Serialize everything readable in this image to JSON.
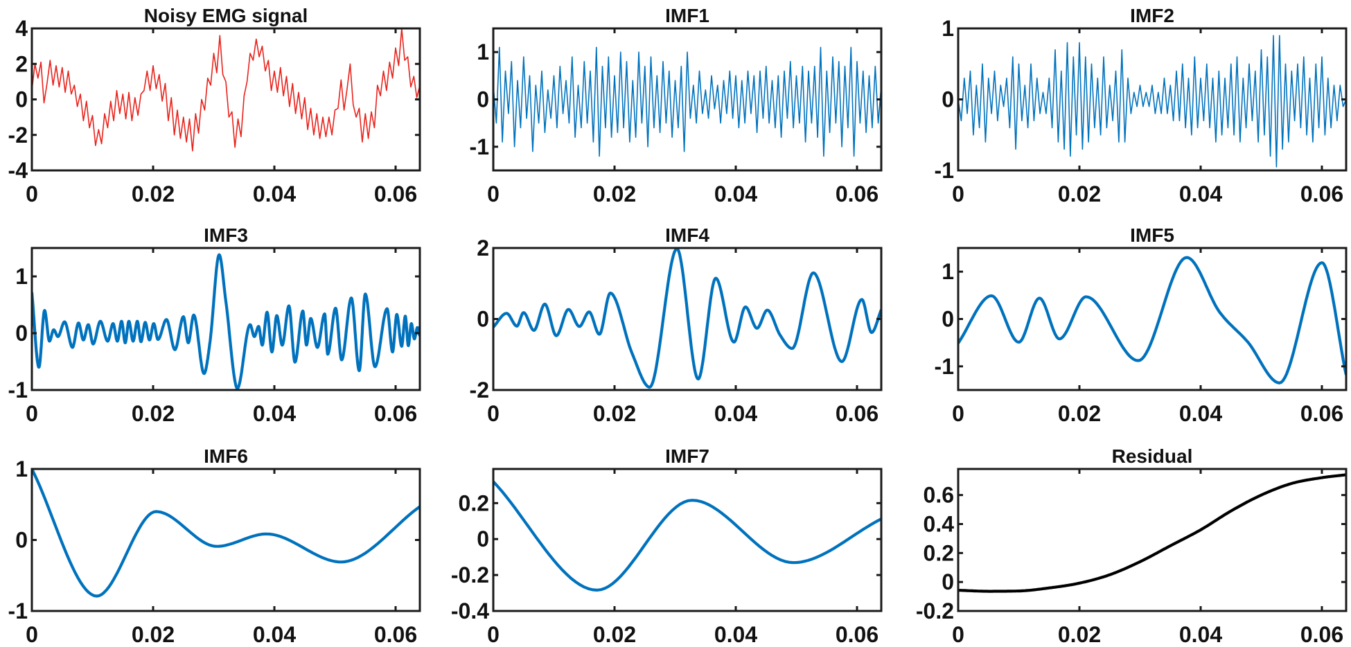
{
  "chart_data": [
    {
      "type": "line",
      "title": "Noisy EMG signal",
      "color": "#e8221b",
      "xlim": [
        0,
        0.064
      ],
      "ylim": [
        -4,
        4
      ],
      "xticks": [
        "0",
        "0.02",
        "0.04",
        "0.06"
      ],
      "yticks": [
        "-4",
        "-2",
        "0",
        "2",
        "4"
      ],
      "y": [
        0.5,
        2.0,
        1.2,
        2.1,
        -0.2,
        0.9,
        2.2,
        0.8,
        1.9,
        0.7,
        1.8,
        0.4,
        1.6,
        0.3,
        0.8,
        -0.4,
        0.3,
        -1.2,
        -0.1,
        -1.6,
        -0.9,
        -2.6,
        -1.7,
        -2.5,
        -0.8,
        -1.6,
        -0.1,
        -1.2,
        0.5,
        -0.8,
        0.3,
        -1.1,
        0.4,
        -1.2,
        0.1,
        -0.9,
        0.3,
        0.5,
        1.6,
        0.5,
        1.9,
        0.6,
        1.4,
        -0.1,
        0.9,
        -1.2,
        0.1,
        -2.0,
        -0.6,
        -2.2,
        -1.0,
        -2.4,
        -1.1,
        -2.9,
        -0.8,
        -1.9,
        0.0,
        -0.6,
        1.2,
        0.8,
        2.6,
        1.5,
        3.6,
        1.4,
        1.0,
        -1.0,
        -0.7,
        -2.7,
        -1.1,
        -2.1,
        0.2,
        1.0,
        2.6,
        2.2,
        3.4,
        2.4,
        3.0,
        1.6,
        2.2,
        0.5,
        1.6,
        0.4,
        1.8,
        0.2,
        1.3,
        -0.4,
        0.9,
        -0.8,
        0.4,
        -1.1,
        0.1,
        -1.7,
        -0.5,
        -2.0,
        -0.8,
        -2.2,
        -1.0,
        -2.1,
        -1.0,
        -2.0,
        -0.6,
        -0.5,
        1.1,
        -0.6,
        0.6,
        2.0,
        -0.3,
        -1.0,
        -0.5,
        -2.4,
        -0.8,
        -2.2,
        -0.7,
        -1.6,
        0.8,
        0.2,
        1.6,
        0.5,
        2.1,
        1.2,
        2.9,
        1.9,
        4.0,
        2.2,
        2.4,
        0.7,
        1.3,
        0.1,
        0.8
      ]
    },
    {
      "type": "line",
      "title": "IMF1",
      "color": "#0072bd",
      "xlim": [
        0,
        0.064
      ],
      "ylim": [
        -1.5,
        1.5
      ],
      "xticks": [
        "0",
        "0.02",
        "0.04",
        "0.06"
      ],
      "yticks": [
        "-1",
        "0",
        "1"
      ],
      "y": [
        0.3,
        -0.5,
        1.1,
        -0.9,
        0.6,
        -0.3,
        0.8,
        -1.0,
        0.4,
        -0.6,
        0.9,
        -0.4,
        0.5,
        -1.1,
        0.3,
        -0.5,
        0.6,
        -0.7,
        0.2,
        -0.4,
        0.5,
        -0.6,
        0.7,
        -0.3,
        0.4,
        -0.5,
        0.9,
        -0.8,
        0.3,
        -0.6,
        0.8,
        -0.5,
        0.6,
        -0.9,
        1.1,
        -1.2,
        0.7,
        -0.6,
        0.9,
        -0.8,
        0.5,
        -0.7,
        1.0,
        -0.6,
        0.8,
        -0.9,
        0.4,
        -0.8,
        1.0,
        -0.5,
        0.7,
        -1.0,
        0.9,
        -0.6,
        0.5,
        -0.7,
        0.8,
        -0.5,
        0.6,
        -0.8,
        0.4,
        -0.6,
        0.7,
        -1.1,
        1.0,
        -0.4,
        0.3,
        -0.5,
        0.6,
        -0.3,
        0.2,
        -0.4,
        0.5,
        -0.2,
        0.3,
        -0.5,
        0.4,
        -0.3,
        0.6,
        -0.4,
        0.5,
        -0.6,
        0.4,
        -0.5,
        0.6,
        -0.3,
        0.5,
        -0.7,
        0.6,
        -0.4,
        0.7,
        -0.5,
        0.4,
        -0.6,
        0.5,
        -0.8,
        0.6,
        -0.4,
        0.8,
        -0.6,
        0.5,
        -0.5,
        0.7,
        -0.9,
        0.6,
        -0.5,
        0.7,
        -0.8,
        1.1,
        -1.2,
        0.6,
        -0.7,
        0.9,
        -0.5,
        0.8,
        -1.0,
        0.7,
        -0.6,
        1.1,
        -1.2,
        0.8,
        -0.5,
        0.6,
        -0.7,
        0.5,
        -0.6,
        0.7,
        -0.5,
        0.3
      ]
    },
    {
      "type": "line",
      "title": "IMF2",
      "color": "#0072bd",
      "xlim": [
        0,
        0.064
      ],
      "ylim": [
        -1,
        1
      ],
      "xticks": [
        "0",
        "0.02",
        "0.04",
        "0.06"
      ],
      "yticks": [
        "-1",
        "0",
        "1"
      ],
      "y": [
        0.0,
        -0.3,
        0.3,
        -0.2,
        0.4,
        -0.5,
        0.2,
        -0.4,
        0.5,
        -0.6,
        0.3,
        -0.2,
        0.4,
        -0.3,
        0.2,
        -0.1,
        0.3,
        -0.4,
        0.6,
        -0.7,
        0.5,
        -0.3,
        0.2,
        -0.4,
        0.5,
        -0.3,
        0.3,
        -0.2,
        0.1,
        -0.2,
        0.3,
        -0.4,
        0.7,
        -0.6,
        0.4,
        -0.7,
        0.8,
        -0.8,
        0.6,
        -0.5,
        0.8,
        -0.7,
        0.6,
        -0.6,
        0.5,
        -0.4,
        0.3,
        -0.5,
        0.6,
        -0.4,
        0.2,
        -0.3,
        0.4,
        -0.6,
        0.7,
        -0.6,
        0.3,
        -0.2,
        0.1,
        -0.1,
        0.2,
        -0.1,
        0.1,
        -0.1,
        0.2,
        -0.2,
        0.1,
        -0.2,
        0.3,
        -0.2,
        0.2,
        -0.3,
        0.4,
        -0.3,
        0.5,
        -0.4,
        0.3,
        -0.5,
        0.6,
        -0.4,
        0.3,
        -0.3,
        0.5,
        -0.4,
        0.3,
        -0.6,
        0.4,
        -0.5,
        0.3,
        -0.4,
        0.5,
        -0.5,
        0.6,
        -0.6,
        0.3,
        -0.4,
        0.5,
        -0.3,
        0.4,
        -0.6,
        0.7,
        -0.5,
        0.6,
        -0.8,
        0.9,
        -0.95,
        0.9,
        -0.7,
        0.5,
        -0.6,
        0.4,
        -0.3,
        0.5,
        -0.4,
        0.6,
        -0.5,
        0.3,
        -0.6,
        0.5,
        -0.4,
        0.6,
        -0.5,
        0.3,
        -0.4,
        0.2,
        -0.3,
        0.2,
        -0.1,
        0.0
      ]
    },
    {
      "type": "line",
      "title": "IMF3",
      "color": "#0072bd",
      "xlim": [
        0,
        0.064
      ],
      "ylim": [
        -1,
        1.5
      ],
      "xticks": [
        "0",
        "0.02",
        "0.04",
        "0.06"
      ],
      "yticks": [
        "-1",
        "0",
        "1"
      ],
      "x": [
        0,
        0.00116,
        0.0021,
        0.0029,
        0.0036,
        0.0043,
        0.0054,
        0.0067,
        0.0077,
        0.0085,
        0.0093,
        0.0101,
        0.0113,
        0.0125,
        0.0134,
        0.0141,
        0.0148,
        0.0154,
        0.016,
        0.0167,
        0.0174,
        0.018,
        0.0187,
        0.0194,
        0.0201,
        0.0208,
        0.0222,
        0.0236,
        0.025,
        0.0258,
        0.0267,
        0.0284,
        0.0294,
        0.0309,
        0.032,
        0.0339,
        0.036,
        0.0367,
        0.0374,
        0.038,
        0.0388,
        0.0396,
        0.0404,
        0.0413,
        0.0424,
        0.0434,
        0.0447,
        0.0453,
        0.046,
        0.0471,
        0.0483,
        0.0488,
        0.0501,
        0.0511,
        0.0527,
        0.054,
        0.055,
        0.0566,
        0.0586,
        0.0595,
        0.0602,
        0.061,
        0.0616,
        0.0621,
        0.0626,
        0.0631,
        0.0636,
        0.064
      ],
      "y": [
        0.72,
        -0.6,
        0.4,
        -0.14,
        0.06,
        -0.06,
        0.2,
        -0.25,
        0.18,
        -0.12,
        0.15,
        -0.19,
        0.21,
        -0.14,
        0.17,
        -0.14,
        0.21,
        -0.17,
        0.21,
        -0.14,
        0.21,
        -0.15,
        0.19,
        -0.12,
        0.17,
        -0.11,
        0.24,
        -0.29,
        0.29,
        -0.17,
        0.32,
        -0.71,
        -0.14,
        1.38,
        0.56,
        -0.97,
        0.15,
        -0.06,
        0.12,
        -0.21,
        0.37,
        -0.33,
        0.31,
        -0.21,
        0.48,
        -0.51,
        0.39,
        -0.21,
        0.26,
        -0.25,
        0.34,
        -0.37,
        0.44,
        -0.47,
        0.62,
        -0.66,
        0.69,
        -0.59,
        0.43,
        -0.33,
        0.33,
        -0.23,
        0.3,
        -0.22,
        0.17,
        -0.1,
        0.1,
        -0.05
      ]
    },
    {
      "type": "line",
      "title": "IMF4",
      "color": "#0072bd",
      "xlim": [
        0,
        0.064
      ],
      "ylim": [
        -2,
        2
      ],
      "xticks": [
        "0",
        "0.02",
        "0.04",
        "0.06"
      ],
      "yticks": [
        "-2",
        "0",
        "2"
      ],
      "x": [
        0,
        0.0022,
        0.0039,
        0.005,
        0.0067,
        0.0085,
        0.0104,
        0.0124,
        0.0142,
        0.0158,
        0.0175,
        0.0193,
        0.0229,
        0.0258,
        0.0303,
        0.0338,
        0.0367,
        0.0397,
        0.0416,
        0.0435,
        0.0452,
        0.0473,
        0.0493,
        0.0528,
        0.0575,
        0.0608,
        0.0624,
        0.064
      ],
      "y": [
        -0.23,
        0.16,
        -0.2,
        0.18,
        -0.32,
        0.42,
        -0.47,
        0.27,
        -0.21,
        0.2,
        -0.43,
        0.73,
        -0.97,
        -1.92,
        1.98,
        -1.69,
        1.15,
        -0.65,
        0.34,
        -0.26,
        0.25,
        -0.45,
        -0.83,
        1.3,
        -1.2,
        0.55,
        -0.38,
        0.26
      ]
    },
    {
      "type": "line",
      "title": "IMF5",
      "color": "#0072bd",
      "xlim": [
        0,
        0.064
      ],
      "ylim": [
        -1.5,
        1.5
      ],
      "xticks": [
        "0",
        "0.02",
        "0.04",
        "0.06"
      ],
      "yticks": [
        "-1",
        "0",
        "1"
      ],
      "x": [
        0,
        0.0055,
        0.01,
        0.0134,
        0.0167,
        0.0211,
        0.0297,
        0.0377,
        0.0431,
        0.0478,
        0.053,
        0.06,
        0.064
      ],
      "y": [
        -0.51,
        0.49,
        -0.49,
        0.44,
        -0.42,
        0.47,
        -0.88,
        1.3,
        0.15,
        -0.49,
        -1.35,
        1.19,
        -1.18
      ]
    },
    {
      "type": "line",
      "title": "IMF6",
      "color": "#0072bd",
      "xlim": [
        0,
        0.064
      ],
      "ylim": [
        -1,
        1
      ],
      "xticks": [
        "0",
        "0.02",
        "0.04",
        "0.06"
      ],
      "yticks": [
        "-1",
        "0",
        "1"
      ],
      "x": [
        0,
        0.0107,
        0.0205,
        0.0305,
        0.0387,
        0.051,
        0.064
      ],
      "y": [
        1.0,
        -0.79,
        0.4,
        -0.09,
        0.085,
        -0.31,
        0.47
      ]
    },
    {
      "type": "line",
      "title": "IMF7",
      "color": "#0072bd",
      "xlim": [
        0,
        0.064
      ],
      "ylim": [
        -0.4,
        0.39
      ],
      "xticks": [
        "0",
        "0.02",
        "0.04",
        "0.06"
      ],
      "yticks": [
        "-0.4",
        "-0.2",
        "0",
        "0.2"
      ],
      "x": [
        0,
        0.0171,
        0.0328,
        0.0495,
        0.064
      ],
      "y": [
        0.32,
        -0.284,
        0.216,
        -0.131,
        0.112
      ]
    },
    {
      "type": "line",
      "title": "Residual",
      "color": "#000000",
      "xlim": [
        0,
        0.064
      ],
      "ylim": [
        -0.2,
        0.78
      ],
      "xticks": [
        "0",
        "0.02",
        "0.04",
        "0.06"
      ],
      "yticks": [
        "-0.2",
        "0",
        "0.2",
        "0.4",
        "0.6"
      ],
      "x": [
        0,
        0.005,
        0.01,
        0.015,
        0.02,
        0.025,
        0.03,
        0.035,
        0.04,
        0.045,
        0.05,
        0.055,
        0.06,
        0.064
      ],
      "y": [
        -0.057,
        -0.064,
        -0.062,
        -0.041,
        -0.008,
        0.05,
        0.14,
        0.25,
        0.36,
        0.49,
        0.6,
        0.68,
        0.72,
        0.74
      ]
    }
  ]
}
